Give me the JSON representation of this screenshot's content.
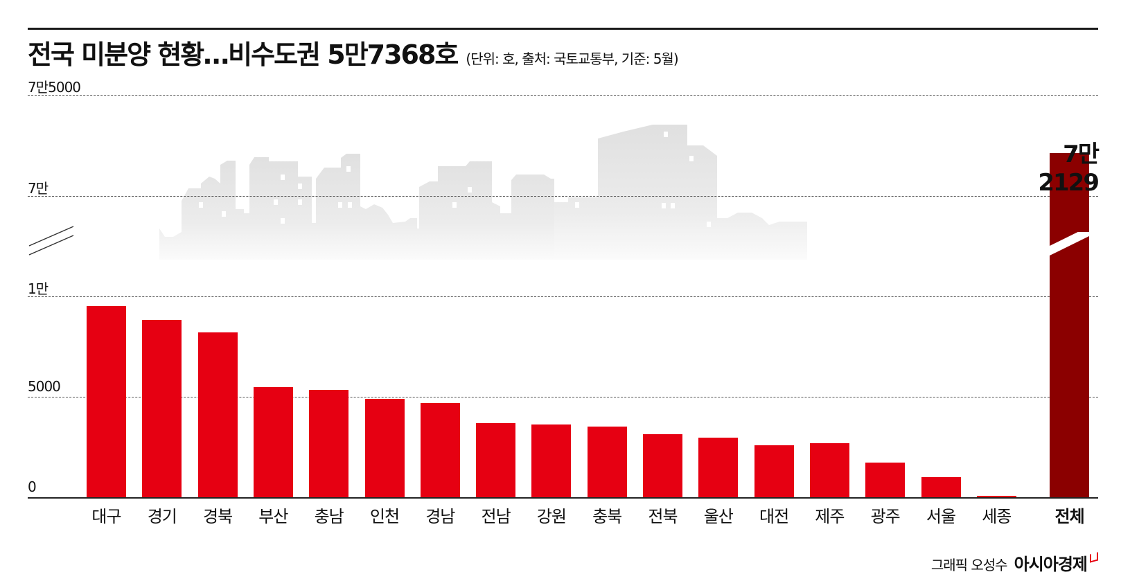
{
  "header": {
    "title": "전국 미분양 현황…비수도권 5만7368호",
    "subtitle": "(단위: 호, 출처: 국토교통부, 기준: 5월)"
  },
  "axis": {
    "y_ticks": [
      "7만5000",
      "7만",
      "1만",
      "5000",
      "0"
    ]
  },
  "total": {
    "label": "전체",
    "value_label": "7만2129"
  },
  "credit": {
    "author": "그래픽 오성수",
    "brand": "아시아경제"
  },
  "colors": {
    "bar": "#e60012",
    "total_bar": "#8b0000",
    "skyline": "#e2e2e2"
  },
  "chart_data": {
    "type": "bar",
    "title": "전국 미분양 현황…비수도권 5만7368호",
    "subtitle": "(단위: 호, 출처: 국토교통부, 기준: 5월)",
    "xlabel": "",
    "ylabel": "호",
    "categories": [
      "대구",
      "경기",
      "경북",
      "부산",
      "충남",
      "인천",
      "경남",
      "전남",
      "강원",
      "충북",
      "전북",
      "울산",
      "대전",
      "제주",
      "광주",
      "서울",
      "세종",
      "전체"
    ],
    "values": [
      9520,
      8840,
      8220,
      5480,
      5340,
      4900,
      4690,
      3700,
      3630,
      3530,
      3150,
      2980,
      2570,
      2700,
      1710,
      990,
      70,
      72129
    ],
    "ylim": [
      0,
      75000
    ],
    "y_axis_break": [
      10000,
      70000
    ],
    "y_ticks": [
      0,
      5000,
      10000,
      70000,
      75000
    ],
    "y_tick_labels": [
      "0",
      "5000",
      "1만",
      "7만",
      "7만5000"
    ],
    "annotations": [
      {
        "category": "전체",
        "text": "7만2129"
      }
    ],
    "grid": true,
    "legend": null
  }
}
